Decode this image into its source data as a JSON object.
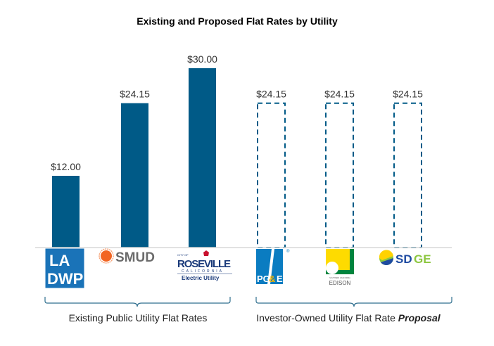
{
  "chart_data": {
    "type": "bar",
    "title": "Existing and Proposed Flat Rates by Utility",
    "categories": [
      "LADWP",
      "SMUD",
      "Roseville Electric Utility",
      "PG&E",
      "Southern California Edison",
      "SDGE"
    ],
    "values": [
      12.0,
      24.15,
      30.0,
      24.15,
      24.15,
      24.15
    ],
    "data_labels": [
      "$12.00",
      "$24.15",
      "$30.00",
      "$24.15",
      "$24.15",
      "$24.15"
    ],
    "bar_style": [
      "solid",
      "solid",
      "solid",
      "dashed",
      "dashed",
      "dashed"
    ],
    "ylim": [
      0,
      30
    ],
    "grid": false,
    "xlabel": "",
    "ylabel": "",
    "groups": [
      {
        "label": "Existing Public Utility Flat Rates",
        "members": [
          0,
          1,
          2
        ]
      },
      {
        "label_plain": "Investor-Owned Utility Flat Rate ",
        "label_emphasis": "Proposal",
        "members": [
          3,
          4,
          5
        ]
      }
    ],
    "colors": {
      "bar": "#005a87",
      "axis": "#d9d9d9",
      "brace": "#2e6e8e"
    }
  },
  "logos": {
    "ladwp": [
      "LA",
      "DWP"
    ],
    "smud": "SMUD",
    "roseville": {
      "top": "CITY OF",
      "name": "ROSEVILLE",
      "state": "CALIFORNIA",
      "sub": "Electric Utility"
    },
    "pge": "PG&E",
    "edison": {
      "top": "SOUTHERN CALIFORNIA",
      "name": "EDISON"
    },
    "sdge": "SDGE"
  }
}
